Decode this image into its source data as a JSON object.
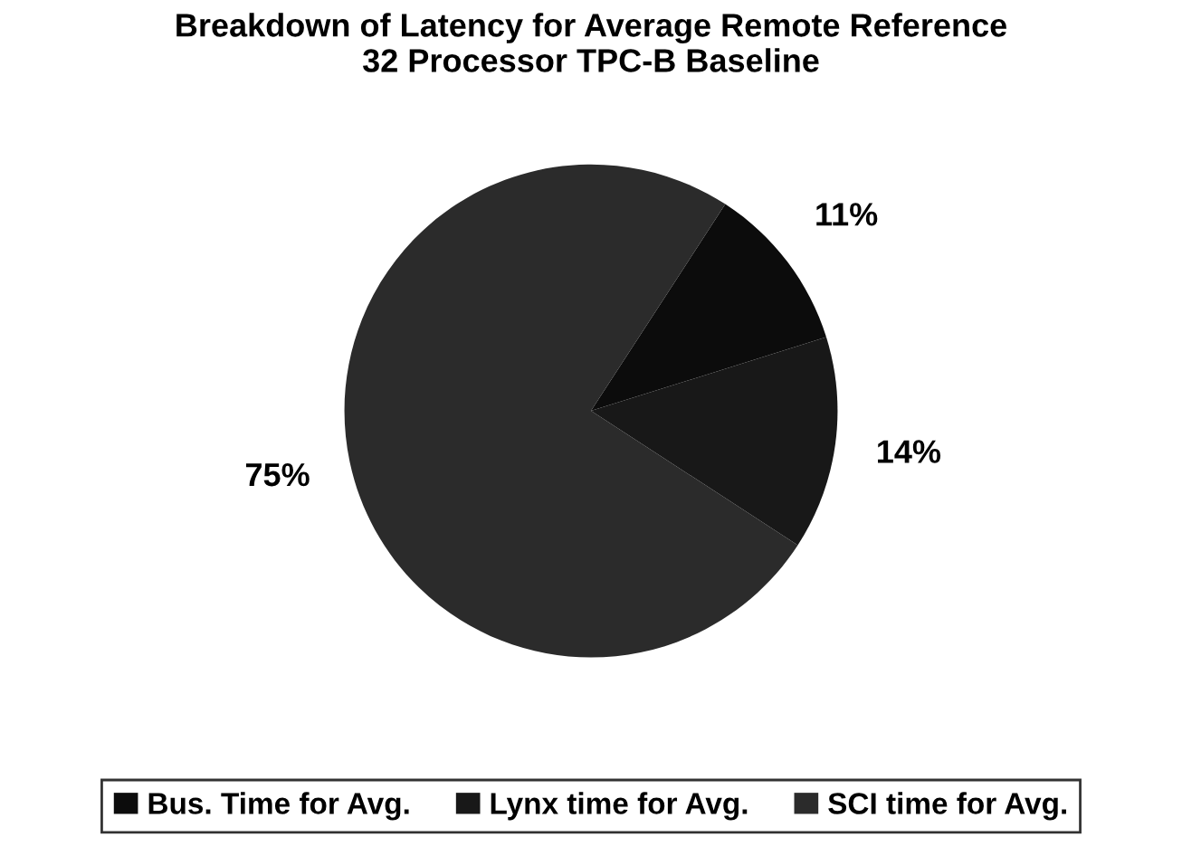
{
  "chart_data": {
    "type": "pie",
    "title": "Breakdown of Latency for Average Remote Reference\n32 Processor TPC-B Baseline",
    "categories": [
      "Bus. Time for Avg.",
      "Lynx time for Avg.",
      "SCI time for Avg."
    ],
    "values": [
      11,
      14,
      75
    ],
    "colors": [
      "#0c0c0c",
      "#181818",
      "#2b2b2b"
    ],
    "value_labels": [
      "11%",
      "14%",
      "75%"
    ],
    "legend": "bottom"
  }
}
